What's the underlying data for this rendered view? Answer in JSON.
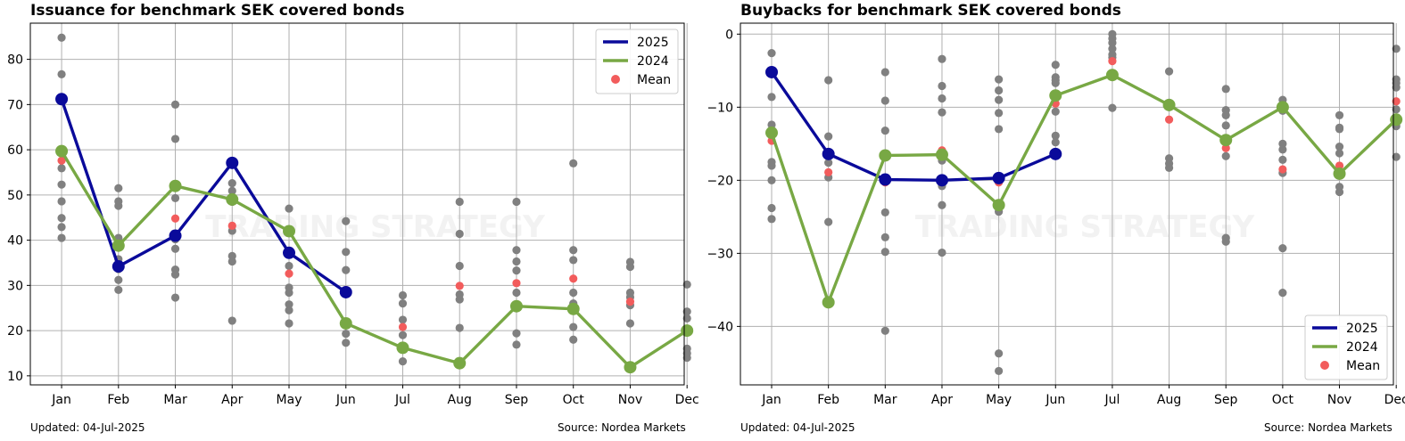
{
  "colors": {
    "s2025": "#0a0a9a",
    "s2024": "#78a844",
    "mean": "#f25c5c",
    "history": "#808080",
    "grid": "#b0b0b0"
  },
  "chart_data": [
    {
      "type": "line",
      "title": "Issuance for benchmark SEK covered bonds",
      "categories": [
        "Jan",
        "Feb",
        "Mar",
        "Apr",
        "May",
        "Jun",
        "Jul",
        "Aug",
        "Sep",
        "Oct",
        "Nov",
        "Dec"
      ],
      "ylim": [
        8,
        88
      ],
      "yticks": [
        10,
        20,
        30,
        40,
        50,
        60,
        70,
        80
      ],
      "grid": true,
      "legend_position": "top-right",
      "legend": [
        "2025",
        "2024",
        "Mean"
      ],
      "series": [
        {
          "name": "2025",
          "values": [
            71.2,
            34.2,
            41.0,
            57.1,
            37.2,
            28.5,
            null,
            null,
            null,
            null,
            null,
            null
          ]
        },
        {
          "name": "2024",
          "values": [
            59.7,
            38.8,
            52.0,
            49.0,
            42.0,
            21.6,
            16.2,
            12.8,
            25.4,
            24.8,
            11.9,
            20.0
          ]
        }
      ],
      "mean": [
        57.6,
        38.9,
        44.8,
        43.2,
        32.6,
        29.0,
        20.8,
        29.9,
        30.5,
        31.5,
        26.4,
        20.1
      ],
      "history": [
        [
          84.8,
          76.7,
          55.9,
          52.3,
          48.6,
          44.9,
          42.9,
          40.5
        ],
        [
          51.5,
          48.6,
          47.6,
          40.5,
          35.8,
          33.6,
          31.2,
          29.0
        ],
        [
          70.0,
          62.4,
          49.3,
          40.2,
          38.1,
          33.5,
          32.4,
          27.3
        ],
        [
          52.6,
          50.9,
          48.5,
          42.1,
          36.5,
          35.3,
          22.2
        ],
        [
          47.0,
          34.3,
          29.5,
          28.4,
          25.8,
          24.5,
          21.6
        ],
        [
          44.2,
          37.4,
          33.4,
          19.3,
          17.3
        ],
        [
          27.8,
          26.0,
          22.4,
          19.0,
          13.2
        ],
        [
          48.5,
          41.4,
          34.3,
          28.0,
          26.9,
          20.6
        ],
        [
          48.5,
          37.8,
          35.3,
          33.3,
          28.4,
          19.4,
          16.9
        ],
        [
          57.0,
          37.8,
          35.6,
          28.4,
          26.0,
          20.8,
          18.0
        ],
        [
          35.2,
          34.1,
          28.4,
          27.4,
          25.6,
          21.6
        ],
        [
          30.2,
          24.2,
          22.7,
          16.0,
          15.0,
          14.0
        ]
      ],
      "updated": "Updated: 04-Jul-2025",
      "source": "Source: Nordea Markets",
      "watermark": "TRADING STRATEGY"
    },
    {
      "type": "line",
      "title": "Buybacks for benchmark SEK covered bonds",
      "categories": [
        "Jan",
        "Feb",
        "Mar",
        "Apr",
        "May",
        "Jun",
        "Jul",
        "Aug",
        "Sep",
        "Oct",
        "Nov",
        "Dec"
      ],
      "ylim": [
        -48,
        1.5
      ],
      "yticks": [
        0,
        -10,
        -20,
        -30,
        -40
      ],
      "grid": true,
      "legend_position": "bottom-right",
      "legend": [
        "2025",
        "2024",
        "Mean"
      ],
      "series": [
        {
          "name": "2025",
          "values": [
            -5.2,
            -16.4,
            -19.9,
            -20.0,
            -19.7,
            -16.4,
            null,
            null,
            null,
            null,
            null,
            null
          ]
        },
        {
          "name": "2024",
          "values": [
            -13.5,
            -36.7,
            -16.6,
            -16.5,
            -23.4,
            -8.4,
            -5.6,
            -9.7,
            -14.5,
            -10.0,
            -19.1,
            -11.7
          ]
        }
      ],
      "mean": [
        -14.6,
        -18.9,
        -20.3,
        -15.9,
        -20.3,
        -9.5,
        -3.7,
        -11.7,
        -15.6,
        -18.5,
        -18.0,
        -9.2
      ],
      "history": [
        [
          -2.6,
          -8.6,
          -12.4,
          -17.5,
          -18.0,
          -20.0,
          -23.8,
          -25.3
        ],
        [
          -6.3,
          -14.0,
          -17.6,
          -19.6,
          -25.7
        ],
        [
          -5.2,
          -9.1,
          -13.2,
          -24.4,
          -27.8,
          -29.8,
          -40.6
        ],
        [
          -3.4,
          -7.1,
          -8.8,
          -10.7,
          -17.3,
          -20.8,
          -23.4,
          -29.9
        ],
        [
          -6.2,
          -7.7,
          -9.0,
          -10.8,
          -13.0,
          -24.3,
          -43.7,
          -46.1
        ],
        [
          -4.2,
          -5.9,
          -6.3,
          -6.7,
          -10.6,
          -13.9,
          -14.8
        ],
        [
          0,
          -0.6,
          -1.2,
          -2.0,
          -2.8,
          -3.2,
          -10.1
        ],
        [
          -5.1,
          -9.4,
          -10.0,
          -17.0,
          -17.7,
          -18.3
        ],
        [
          -7.5,
          -10.4,
          -11.1,
          -12.5,
          -16.7,
          -27.9,
          -28.4
        ],
        [
          -9.0,
          -10.5,
          -15.0,
          -15.8,
          -17.2,
          -19.0,
          -29.3,
          -35.4
        ],
        [
          -11.1,
          -12.8,
          -13.0,
          -15.4,
          -16.3,
          -20.9,
          -21.6
        ],
        [
          -2.0,
          -6.2,
          -6.7,
          -7.3,
          -10.3,
          -12.6,
          -16.8
        ]
      ],
      "updated": "Updated: 04-Jul-2025",
      "source": "Source: Nordea Markets",
      "watermark": "TRADING STRATEGY"
    }
  ]
}
